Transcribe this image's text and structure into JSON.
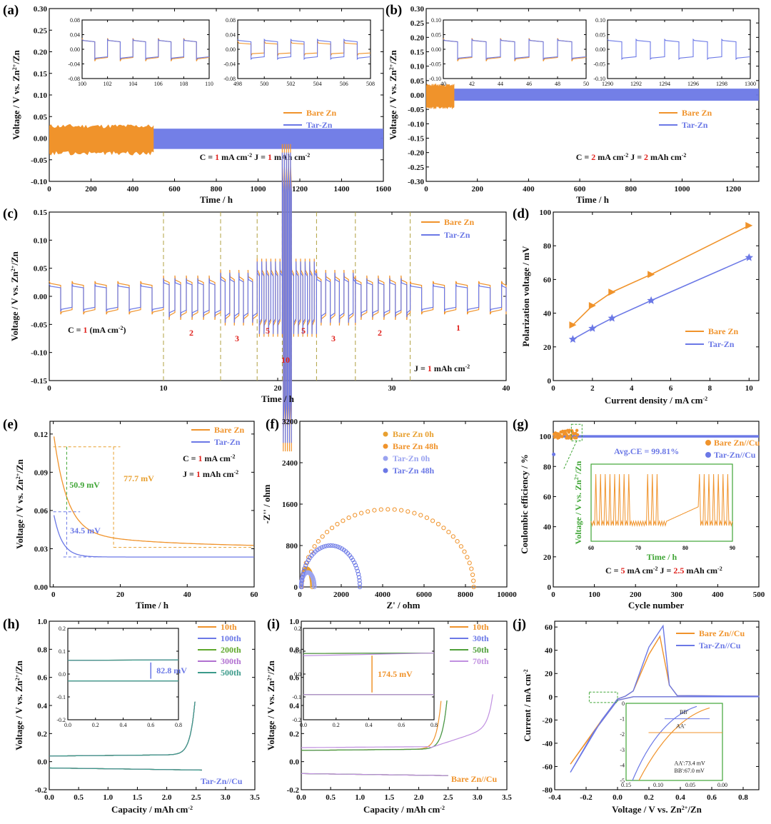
{
  "colors": {
    "bare": "#F0932B",
    "tar": "#6B78E6",
    "red": "#E0201B",
    "green": "#3FA535",
    "gold": "#E8A030"
  },
  "chart_data": [
    {
      "id": "a",
      "panel": "(a)",
      "type": "line",
      "xlabel": "Time / h",
      "ylabel": "Voltage / V vs. Zn2+/Zn",
      "xlim": [
        0,
        1600
      ],
      "ylim": [
        -0.1,
        0.3
      ],
      "xticks": [
        0,
        200,
        400,
        600,
        800,
        1000,
        1200,
        1400,
        1600
      ],
      "yticks": [
        "-0.10",
        "-0.05",
        "0.00",
        "0.05",
        "0.10",
        "0.15",
        "0.20",
        "0.25",
        "0.30"
      ],
      "legend": [
        "Bare Zn",
        "Tar-Zn"
      ],
      "series": [
        {
          "name": "Bare Zn",
          "x_end": 500,
          "band": [
            -0.035,
            0.028
          ]
        },
        {
          "name": "Tar-Zn",
          "x_end": 1600,
          "band": [
            -0.025,
            0.022
          ]
        }
      ],
      "annotation": {
        "c_pre": "C = ",
        "c_val": "1",
        "c_unit": " mA cm",
        "j_pre": "J = ",
        "j_val": "1",
        "j_unit": " mAh cm"
      },
      "insets": [
        {
          "xlim": [
            100,
            110
          ],
          "ylim": [
            -0.08,
            0.08
          ],
          "xticks": [
            "100",
            "102",
            "104",
            "106",
            "108",
            "110"
          ],
          "yticks": [
            "-0.08",
            "-0.04",
            "0.00",
            "0.04",
            "0.08"
          ]
        },
        {
          "xlim": [
            498,
            508
          ],
          "ylim": [
            -0.08,
            0.08
          ],
          "xticks": [
            "498",
            "500",
            "502",
            "504",
            "506",
            "508"
          ],
          "yticks": [
            "-0.08",
            "-0.04",
            "0.00",
            "0.04",
            "0.08"
          ]
        }
      ]
    },
    {
      "id": "b",
      "panel": "(b)",
      "type": "line",
      "xlabel": "Time / h",
      "ylabel": "Voltage / V vs. Zn2+/Zn",
      "xlim": [
        0,
        1300
      ],
      "ylim": [
        -0.3,
        0.3
      ],
      "xticks": [
        0,
        200,
        400,
        600,
        800,
        1000,
        1200
      ],
      "yticks": [
        "-0.30",
        "-0.25",
        "-0.20",
        "-0.15",
        "-0.10",
        "-0.05",
        "0.00",
        "0.05",
        "0.10",
        "0.15",
        "0.20",
        "0.25",
        "0.30"
      ],
      "legend": [
        "Bare Zn",
        "Tar-Zn"
      ],
      "series": [
        {
          "name": "Bare Zn",
          "x_end": 110,
          "band": [
            -0.045,
            0.035
          ]
        },
        {
          "name": "Tar-Zn",
          "x_end": 1300,
          "band": [
            -0.02,
            0.022
          ]
        }
      ],
      "annotation": {
        "c_pre": "C = ",
        "c_val": "2",
        "c_unit": " mA cm",
        "j_pre": "J = ",
        "j_val": "2",
        "j_unit": " mAh cm"
      },
      "insets": [
        {
          "xlim": [
            40,
            50
          ],
          "ylim": [
            -0.1,
            0.1
          ],
          "xticks": [
            "40",
            "42",
            "44",
            "46",
            "48",
            "50"
          ],
          "yticks": [
            "-0.10",
            "-0.05",
            "0.00",
            "0.05",
            "0.10"
          ]
        },
        {
          "xlim": [
            1290,
            1300
          ],
          "ylim": [
            -0.1,
            0.1
          ],
          "xticks": [
            "1290",
            "1292",
            "1294",
            "1296",
            "1298",
            "1300"
          ],
          "yticks": [
            "-0.10",
            "-0.05",
            "0.00",
            "0.05",
            "0.10"
          ]
        }
      ]
    },
    {
      "id": "c",
      "panel": "(c)",
      "type": "line",
      "xlabel": "Time / h",
      "ylabel": "Voltage / V vs. Zn2+/Zn",
      "xlim": [
        0,
        40
      ],
      "ylim": [
        -0.15,
        0.15
      ],
      "xticks": [
        0,
        10,
        20,
        30,
        40
      ],
      "yticks": [
        "-0.15",
        "-0.10",
        "-0.05",
        "0.00",
        "0.05",
        "0.10",
        "0.15"
      ],
      "legend": [
        "Bare Zn",
        "Tar-Zn"
      ],
      "segments": [
        {
          "x0": 0,
          "x1": 10,
          "c": 1
        },
        {
          "x0": 10,
          "x1": 15,
          "c": 2
        },
        {
          "x0": 15,
          "x1": 18.2,
          "c": 3
        },
        {
          "x0": 18.2,
          "x1": 20.4,
          "c": 5
        },
        {
          "x0": 20.4,
          "x1": 21.2,
          "c": 10
        },
        {
          "x0": 21.2,
          "x1": 23.4,
          "c": 5
        },
        {
          "x0": 23.4,
          "x1": 26.8,
          "c": 3
        },
        {
          "x0": 26.8,
          "x1": 31.6,
          "c": 2
        },
        {
          "x0": 31.6,
          "x1": 40,
          "c": 1
        }
      ],
      "rate_labels": [
        "1",
        "2",
        "3",
        "5",
        "10",
        "5",
        "3",
        "2",
        "1"
      ],
      "c_pre": "C = ",
      "c_val": "1",
      "c_unit": " (mA cm",
      "c_close": ")",
      "j_text": "J = ",
      "j_val": "1",
      "j_unit": " mAh cm"
    },
    {
      "id": "d",
      "panel": "(d)",
      "type": "line",
      "xlabel": "Current density / mA cm-2",
      "ylabel": "Polarization voltage / mV",
      "xlim": [
        0,
        10.5
      ],
      "ylim": [
        0,
        100
      ],
      "xticks": [
        0,
        2,
        4,
        6,
        8,
        10
      ],
      "yticks": [
        0,
        20,
        40,
        60,
        80,
        100
      ],
      "series": [
        {
          "name": "Bare Zn",
          "x": [
            1,
            2,
            3,
            5,
            10
          ],
          "y": [
            33,
            44.5,
            52.5,
            63,
            92
          ]
        },
        {
          "name": "Tar-Zn",
          "x": [
            1,
            2,
            3,
            5,
            10
          ],
          "y": [
            24.5,
            31,
            37,
            47.5,
            73
          ]
        }
      ]
    },
    {
      "id": "e",
      "panel": "(e)",
      "type": "line",
      "xlabel": "Time / h",
      "ylabel": "Voltage / V vs. Zn2+/Zn",
      "xlim": [
        -1,
        60
      ],
      "ylim": [
        0,
        0.13
      ],
      "xticks": [
        0,
        20,
        40,
        60
      ],
      "yticks": [
        "0.00",
        "0.03",
        "0.06",
        "0.09",
        "0.12"
      ],
      "legend": [
        "Bare Zn",
        "Tar-Zn"
      ],
      "series": [
        {
          "name": "Bare Zn",
          "start": 0.11,
          "end": 0.031
        },
        {
          "name": "Tar-Zn",
          "start": 0.059,
          "end": 0.0235
        }
      ],
      "annotations": [
        "50.9 mV",
        "77.7 mV",
        "34.5 mV"
      ],
      "c_pre": "C = ",
      "c_val": "1",
      "c_unit": " mA cm",
      "j_pre": "J = ",
      "j_val": "1",
      "j_unit": " mAh cm"
    },
    {
      "id": "f",
      "panel": "(f)",
      "type": "scatter",
      "xlabel": "Z' / ohm",
      "ylabel": "-Z'' / ohm",
      "xlim": [
        0,
        10000
      ],
      "ylim": [
        0,
        3200
      ],
      "xticks": [
        0,
        2000,
        4000,
        6000,
        8000,
        10000
      ],
      "yticks": [
        0,
        800,
        1600,
        2400,
        3200
      ],
      "series": [
        {
          "name": "Bare Zn 0h",
          "arc": [
            80,
            600,
            350
          ]
        },
        {
          "name": "Bare Zn 48h",
          "arc": [
            100,
            8400,
            1500
          ]
        },
        {
          "name": "Tar-Zn  0h",
          "arc": [
            60,
            700,
            280
          ]
        },
        {
          "name": "Tar-Zn  48h",
          "arc": [
            80,
            2900,
            800
          ]
        }
      ]
    },
    {
      "id": "g",
      "panel": "(g)",
      "type": "scatter",
      "xlabel": "Cycle number",
      "ylabel": "Coulombic efficiency / %",
      "xlim": [
        0,
        500
      ],
      "ylim": [
        0,
        110
      ],
      "xticks": [
        0,
        100,
        200,
        300,
        400,
        500
      ],
      "yticks": [
        0,
        20,
        40,
        60,
        80,
        100
      ],
      "legend": [
        "Bare Zn//Cu",
        "Tar-Zn//Cu"
      ],
      "avg_ce": "Avg.CE = 99.81%",
      "c_pre": "C = ",
      "c_val": "5",
      "c_unit": " mA cm",
      "j_pre": "J = ",
      "j_val": "2.5",
      "j_unit": " mAh cm",
      "inset": {
        "xlabel": "Time / h",
        "ylabel": "Voltage / V vs. Zn2+/Zn",
        "xticks": [
          "60",
          "70",
          "80",
          "90"
        ]
      }
    },
    {
      "id": "h",
      "panel": "(h)",
      "type": "line",
      "xlabel": "Capacity / mAh cm-2",
      "ylabel": "Voltage / V vs. Zn2+/Zn",
      "xlim": [
        0,
        3.5
      ],
      "ylim": [
        -0.2,
        1.0
      ],
      "xticks": [
        "0.0",
        "0.5",
        "1.0",
        "1.5",
        "2.0",
        "2.5",
        "3.0",
        "3.5"
      ],
      "yticks": [
        "-0.2",
        "0.0",
        "0.2",
        "0.4",
        "0.6",
        "0.8",
        "1.0"
      ],
      "legend": [
        "10th",
        "100th",
        "200th",
        "300th",
        "500th"
      ],
      "cell": "Tar-Zn//Cu",
      "gap": "82.8 mV",
      "inset": {
        "xticks": [
          "0.0",
          "0.2",
          "0.4",
          "0.6",
          "0.8"
        ],
        "yticks": [
          "-0.2",
          "-0.1",
          "0.0",
          "0.1",
          "0.2"
        ]
      }
    },
    {
      "id": "i",
      "panel": "(i)",
      "type": "line",
      "xlabel": "Capacity / mAh cm-2",
      "ylabel": "Voltage / V vs. Zn2+/Zn",
      "xlim": [
        0,
        3.5
      ],
      "ylim": [
        -0.2,
        1.0
      ],
      "xticks": [
        "0.0",
        "0.5",
        "1.0",
        "1.5",
        "2.0",
        "2.5",
        "3.0",
        "3.5"
      ],
      "yticks": [
        "-0.2",
        "0.0",
        "0.2",
        "0.4",
        "0.6",
        "0.8",
        "1.0"
      ],
      "legend": [
        "10th",
        "30th",
        "50th",
        "70th"
      ],
      "cell": "Bare Zn//Cu",
      "gap": "174.5 mV",
      "inset": {
        "xticks": [
          "0.0",
          "0.2",
          "0.4",
          "0.6",
          "0.8"
        ],
        "yticks": [
          "-0.2",
          "-0.1",
          "0.0",
          "0.1",
          "0.2"
        ]
      }
    },
    {
      "id": "j",
      "panel": "(j)",
      "type": "line",
      "xlabel": "Voltage / V vs. Zn2+/Zn",
      "ylabel": "Current / mA cm-2",
      "xlim": [
        -0.4,
        0.9
      ],
      "ylim": [
        -80,
        65
      ],
      "xticks": [
        "-0.4",
        "-0.2",
        "0.0",
        "0.2",
        "0.4",
        "0.6",
        "0.8"
      ],
      "yticks": [
        "-80",
        "-60",
        "-40",
        "-20",
        "0",
        "20",
        "40",
        "60"
      ],
      "legend": [
        "Bare Zn//Cu",
        "Tar-Zn//Cu"
      ],
      "inset": {
        "labels": [
          "BB'",
          "AA'"
        ],
        "notes": [
          "AA':73.4 mV",
          "BB':67.0 mV"
        ],
        "xticks": [
          "0.15",
          "0.10",
          "0.05",
          "0.00"
        ],
        "yticks": [
          "0",
          "-1",
          "-2",
          "-3",
          "-4",
          "-5"
        ]
      }
    }
  ]
}
